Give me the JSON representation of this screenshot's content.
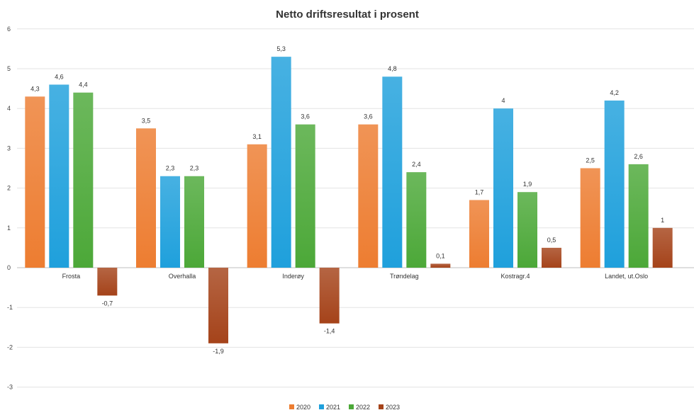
{
  "chart_data": {
    "type": "bar",
    "title": "Netto driftsresultat i prosent",
    "xlabel": "",
    "ylabel": "",
    "ylim": [
      -3,
      6
    ],
    "yticks": [
      -3,
      -2,
      -1,
      0,
      1,
      2,
      3,
      4,
      5,
      6
    ],
    "grid": true,
    "legend_position": "bottom",
    "categories": [
      "Frosta",
      "Overhalla",
      "Inderøy",
      "Trøndelag",
      "Kostragr.4",
      "Landet, ut.Oslo"
    ],
    "series": [
      {
        "name": "2020",
        "color": "#ED7D31",
        "values": [
          4.3,
          3.5,
          3.1,
          3.6,
          1.7,
          2.5
        ],
        "labels": [
          "4,3",
          "3,5",
          "3,1",
          "3,6",
          "1,7",
          "2,5"
        ]
      },
      {
        "name": "2021",
        "color": "#1FA0DC",
        "values": [
          4.6,
          2.3,
          5.3,
          4.8,
          4.0,
          4.2
        ],
        "labels": [
          "4,6",
          "2,3",
          "5,3",
          "4,8",
          "4",
          "4,2"
        ]
      },
      {
        "name": "2022",
        "color": "#4CA838",
        "values": [
          4.4,
          2.3,
          3.6,
          2.4,
          1.9,
          2.6
        ],
        "labels": [
          "4,4",
          "2,3",
          "3,6",
          "2,4",
          "1,9",
          "2,6"
        ]
      },
      {
        "name": "2023",
        "color": "#A5431A",
        "values": [
          -0.7,
          -1.9,
          -1.4,
          0.1,
          0.5,
          1.0
        ],
        "labels": [
          "-0,7",
          "-1,9",
          "-1,4",
          "0,1",
          "0,5",
          "1"
        ]
      }
    ]
  }
}
